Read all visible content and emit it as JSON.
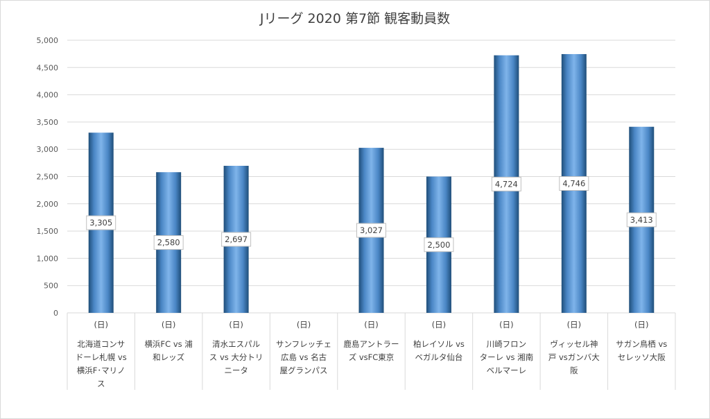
{
  "chart_data": {
    "type": "bar",
    "title": "Jリーグ 2020 第7節 観客動員数",
    "ylim": [
      0,
      5000
    ],
    "yticks": [
      0,
      500,
      1000,
      1500,
      2000,
      2500,
      3000,
      3500,
      4000,
      4500,
      5000
    ],
    "ytick_labels": [
      "0",
      "500",
      "1,000",
      "1,500",
      "2,000",
      "2,500",
      "3,000",
      "3,500",
      "4,000",
      "4,500",
      "5,000"
    ],
    "grid": true,
    "bar_color": "#5b9bd5",
    "categories": [
      {
        "day": "(日)",
        "lines": [
          "北海道コンサ",
          "ドーレ札幌 vs",
          "横浜F･マリノ",
          "ス"
        ]
      },
      {
        "day": "(日)",
        "lines": [
          "横浜FC vs 浦",
          "和レッズ"
        ]
      },
      {
        "day": "(日)",
        "lines": [
          "清水エスパル",
          "ス vs 大分トリ",
          "ニータ"
        ]
      },
      {
        "day": "(日)",
        "lines": [
          "サンフレッチェ",
          "広島 vs 名古",
          "屋グランパス"
        ]
      },
      {
        "day": "(日)",
        "lines": [
          "鹿島アントラー",
          "ズ vsFC東京"
        ]
      },
      {
        "day": "(日)",
        "lines": [
          "柏レイソル vs",
          "ベガルタ仙台"
        ]
      },
      {
        "day": "(日)",
        "lines": [
          "川崎フロン",
          "ターレ vs 湘南",
          "ベルマーレ"
        ]
      },
      {
        "day": "(日)",
        "lines": [
          "ヴィッセル神",
          "戸 vsガンバ大",
          "阪"
        ]
      },
      {
        "day": "(日)",
        "lines": [
          "サガン鳥栖 vs",
          "セレッソ大阪"
        ]
      }
    ],
    "values": [
      3305,
      2580,
      2697,
      null,
      3027,
      2500,
      4724,
      4746,
      3413
    ],
    "data_labels": [
      "3,305",
      "2,580",
      "2,697",
      "",
      "3,027",
      "2,500",
      "4,724",
      "4,746",
      "3,413"
    ]
  }
}
